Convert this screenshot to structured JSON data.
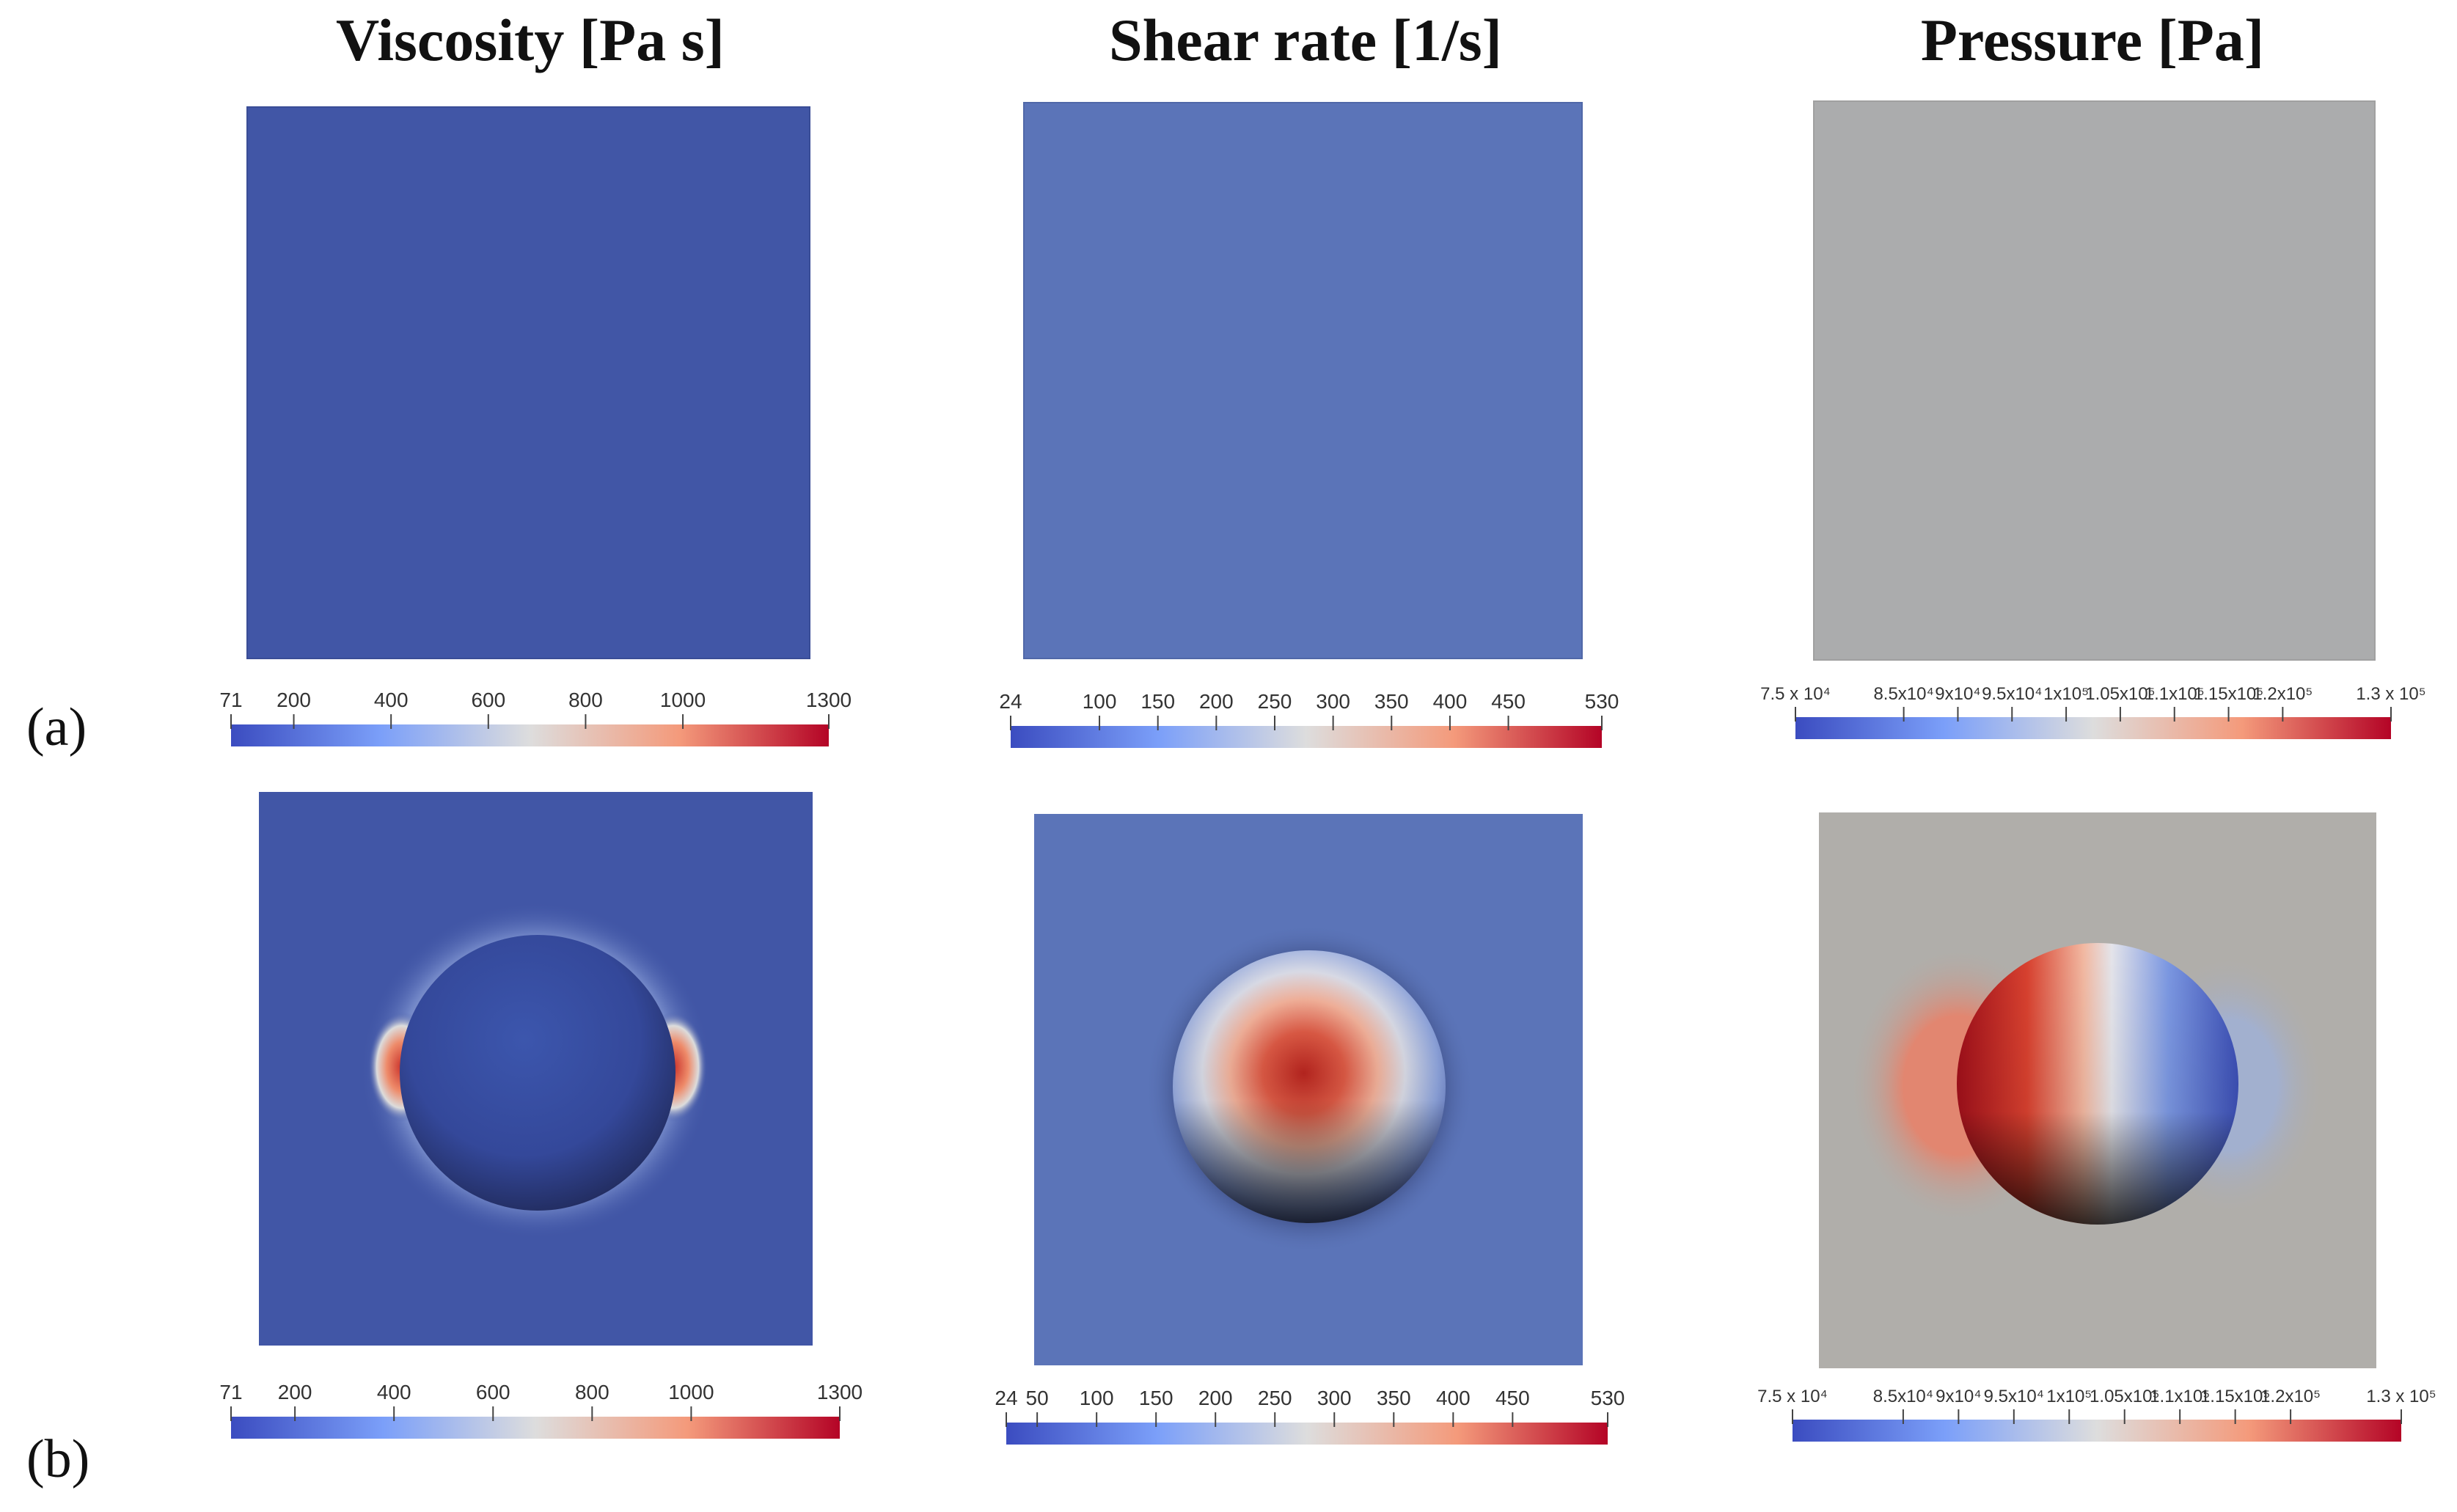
{
  "columns": [
    {
      "title": "Viscosity [Pa s]"
    },
    {
      "title": "Shear rate [1/s]"
    },
    {
      "title": "Pressure [Pa]"
    }
  ],
  "rows": [
    {
      "label": "(a)"
    },
    {
      "label": "(b)"
    }
  ],
  "colorbars": {
    "viscosity_a": {
      "min": 71,
      "max": 1300,
      "ticks": [
        {
          "v": 71,
          "label": "71"
        },
        {
          "v": 200,
          "label": "200"
        },
        {
          "v": 400,
          "label": "400"
        },
        {
          "v": 600,
          "label": "600"
        },
        {
          "v": 800,
          "label": "800"
        },
        {
          "v": 1000,
          "label": "1000"
        },
        {
          "v": 1300,
          "label": "1300"
        }
      ]
    },
    "shear_a": {
      "min": 24,
      "max": 530,
      "ticks": [
        {
          "v": 24,
          "label": "24"
        },
        {
          "v": 100,
          "label": "100"
        },
        {
          "v": 150,
          "label": "150"
        },
        {
          "v": 200,
          "label": "200"
        },
        {
          "v": 250,
          "label": "250"
        },
        {
          "v": 300,
          "label": "300"
        },
        {
          "v": 350,
          "label": "350"
        },
        {
          "v": 400,
          "label": "400"
        },
        {
          "v": 450,
          "label": "450"
        },
        {
          "v": 530,
          "label": "530"
        }
      ]
    },
    "pressure_a": {
      "min": 75000,
      "max": 130000,
      "ticks": [
        {
          "v": 75000,
          "label": "7.5 x 10⁴"
        },
        {
          "v": 85000,
          "label": "8.5x10⁴"
        },
        {
          "v": 90000,
          "label": "9x10⁴"
        },
        {
          "v": 95000,
          "label": "9.5x10⁴"
        },
        {
          "v": 100000,
          "label": "1x10⁵"
        },
        {
          "v": 105000,
          "label": "1.05x10⁵"
        },
        {
          "v": 110000,
          "label": "1.1x10⁵"
        },
        {
          "v": 115000,
          "label": "1.15x10⁵"
        },
        {
          "v": 120000,
          "label": "1.2x10⁵"
        },
        {
          "v": 130000,
          "label": "1.3 x 10⁵"
        }
      ]
    },
    "viscosity_b": {
      "min": 71,
      "max": 1300,
      "ticks": [
        {
          "v": 71,
          "label": "71"
        },
        {
          "v": 200,
          "label": "200"
        },
        {
          "v": 400,
          "label": "400"
        },
        {
          "v": 600,
          "label": "600"
        },
        {
          "v": 800,
          "label": "800"
        },
        {
          "v": 1000,
          "label": "1000"
        },
        {
          "v": 1300,
          "label": "1300"
        }
      ]
    },
    "shear_b": {
      "min": 24,
      "max": 530,
      "ticks": [
        {
          "v": 24,
          "label": "24"
        },
        {
          "v": 50,
          "label": "50"
        },
        {
          "v": 100,
          "label": "100"
        },
        {
          "v": 150,
          "label": "150"
        },
        {
          "v": 200,
          "label": "200"
        },
        {
          "v": 250,
          "label": "250"
        },
        {
          "v": 300,
          "label": "300"
        },
        {
          "v": 350,
          "label": "350"
        },
        {
          "v": 400,
          "label": "400"
        },
        {
          "v": 450,
          "label": "450"
        },
        {
          "v": 530,
          "label": "530"
        }
      ]
    },
    "pressure_b": {
      "min": 75000,
      "max": 130000,
      "ticks": [
        {
          "v": 75000,
          "label": "7.5 x 10⁴"
        },
        {
          "v": 85000,
          "label": "8.5x10⁴"
        },
        {
          "v": 90000,
          "label": "9x10⁴"
        },
        {
          "v": 95000,
          "label": "9.5x10⁴"
        },
        {
          "v": 100000,
          "label": "1x10⁵"
        },
        {
          "v": 105000,
          "label": "1.05x10⁵"
        },
        {
          "v": 110000,
          "label": "1.1x10⁵"
        },
        {
          "v": 115000,
          "label": "1.15x10⁵"
        },
        {
          "v": 120000,
          "label": "1.2x10⁵"
        },
        {
          "v": 130000,
          "label": "1.3 x 10⁵"
        }
      ]
    }
  },
  "colors": {
    "viscosity_field": "#4156a6",
    "shear_field": "#5b74b8",
    "pressure_field": "#abacad",
    "pressure_field_b": "#b0aeaa",
    "cmap_low": "#3b4cc0",
    "cmap_mid": "#dddddd",
    "cmap_high": "#b40426"
  }
}
